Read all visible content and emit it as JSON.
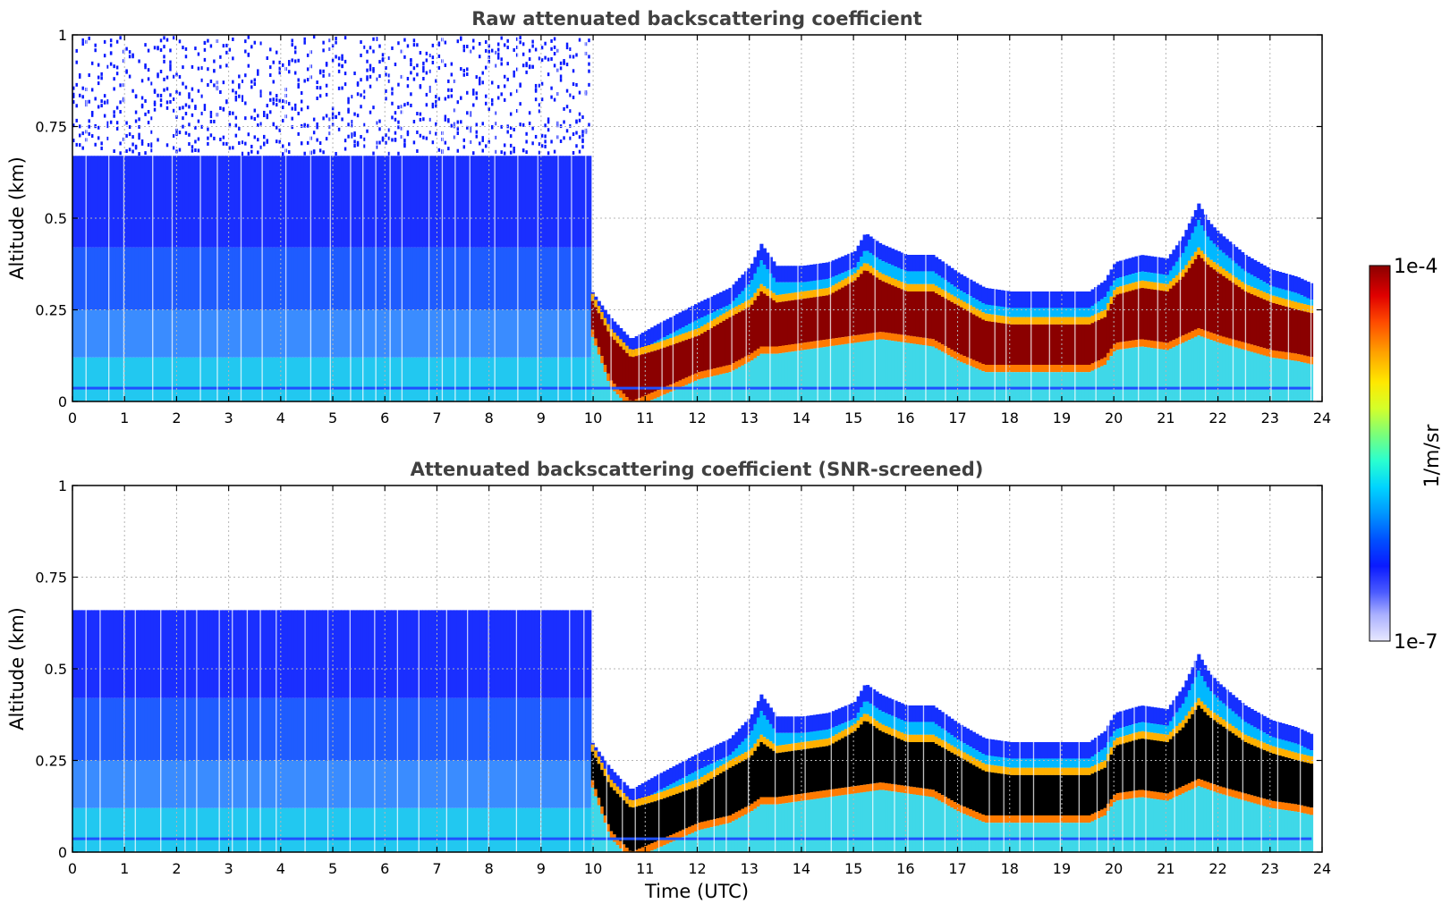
{
  "chart_data": [
    {
      "type": "heatmap",
      "title": "Raw attenuated backscattering coefficient",
      "xlabel": "",
      "ylabel": "Altitude (km)",
      "xlim": [
        0,
        24
      ],
      "ylim": [
        0,
        1
      ],
      "xticks": [
        "0",
        "1",
        "2",
        "3",
        "4",
        "5",
        "6",
        "7",
        "8",
        "9",
        "10",
        "11",
        "12",
        "13",
        "14",
        "15",
        "16",
        "17",
        "18",
        "19",
        "20",
        "21",
        "22",
        "23",
        "24"
      ],
      "yticks": [
        "0",
        "0.25",
        "0.5",
        "0.75",
        "1"
      ],
      "grid": true,
      "data_end_time": 23.8,
      "noise_regime_until_hour": 9.9,
      "layer_top_km": [
        {
          "t": 0,
          "v": 0.42
        },
        {
          "t": 9.7,
          "v": 0.42
        },
        {
          "t": 9.9,
          "v": 0.3
        },
        {
          "t": 10.3,
          "v": 0.22
        },
        {
          "t": 10.7,
          "v": 0.16
        },
        {
          "t": 11.2,
          "v": 0.2
        },
        {
          "t": 12,
          "v": 0.26
        },
        {
          "t": 12.6,
          "v": 0.3
        },
        {
          "t": 13,
          "v": 0.36
        },
        {
          "t": 13.2,
          "v": 0.42
        },
        {
          "t": 13.5,
          "v": 0.36
        },
        {
          "t": 14,
          "v": 0.36
        },
        {
          "t": 14.5,
          "v": 0.37
        },
        {
          "t": 15,
          "v": 0.4
        },
        {
          "t": 15.2,
          "v": 0.45
        },
        {
          "t": 15.5,
          "v": 0.42
        },
        {
          "t": 16,
          "v": 0.39
        },
        {
          "t": 16.5,
          "v": 0.39
        },
        {
          "t": 17,
          "v": 0.34
        },
        {
          "t": 17.5,
          "v": 0.3
        },
        {
          "t": 18,
          "v": 0.29
        },
        {
          "t": 19,
          "v": 0.29
        },
        {
          "t": 19.5,
          "v": 0.29
        },
        {
          "t": 19.8,
          "v": 0.32
        },
        {
          "t": 20,
          "v": 0.37
        },
        {
          "t": 20.5,
          "v": 0.39
        },
        {
          "t": 21,
          "v": 0.38
        },
        {
          "t": 21.3,
          "v": 0.44
        },
        {
          "t": 21.6,
          "v": 0.53
        },
        {
          "t": 21.8,
          "v": 0.48
        },
        {
          "t": 22,
          "v": 0.45
        },
        {
          "t": 22.5,
          "v": 0.39
        },
        {
          "t": 23,
          "v": 0.35
        },
        {
          "t": 23.5,
          "v": 0.33
        },
        {
          "t": 23.8,
          "v": 0.31
        }
      ],
      "core_top_km": [
        {
          "t": 9.9,
          "v": 0.29
        },
        {
          "t": 10.3,
          "v": 0.18
        },
        {
          "t": 10.7,
          "v": 0.12
        },
        {
          "t": 11.2,
          "v": 0.14
        },
        {
          "t": 12,
          "v": 0.18
        },
        {
          "t": 12.6,
          "v": 0.23
        },
        {
          "t": 13,
          "v": 0.26
        },
        {
          "t": 13.2,
          "v": 0.3
        },
        {
          "t": 13.5,
          "v": 0.27
        },
        {
          "t": 14,
          "v": 0.28
        },
        {
          "t": 14.5,
          "v": 0.29
        },
        {
          "t": 15,
          "v": 0.33
        },
        {
          "t": 15.2,
          "v": 0.36
        },
        {
          "t": 15.5,
          "v": 0.33
        },
        {
          "t": 16,
          "v": 0.3
        },
        {
          "t": 16.5,
          "v": 0.3
        },
        {
          "t": 17,
          "v": 0.26
        },
        {
          "t": 17.5,
          "v": 0.22
        },
        {
          "t": 18,
          "v": 0.21
        },
        {
          "t": 19,
          "v": 0.21
        },
        {
          "t": 19.5,
          "v": 0.21
        },
        {
          "t": 19.8,
          "v": 0.23
        },
        {
          "t": 20,
          "v": 0.29
        },
        {
          "t": 20.5,
          "v": 0.31
        },
        {
          "t": 21,
          "v": 0.3
        },
        {
          "t": 21.3,
          "v": 0.34
        },
        {
          "t": 21.6,
          "v": 0.4
        },
        {
          "t": 21.8,
          "v": 0.37
        },
        {
          "t": 22,
          "v": 0.35
        },
        {
          "t": 22.5,
          "v": 0.3
        },
        {
          "t": 23,
          "v": 0.27
        },
        {
          "t": 23.5,
          "v": 0.25
        },
        {
          "t": 23.8,
          "v": 0.24
        }
      ],
      "core_bottom_km": [
        {
          "t": 9.9,
          "v": 0.22
        },
        {
          "t": 10.3,
          "v": 0.06
        },
        {
          "t": 10.7,
          "v": 0.0
        },
        {
          "t": 11.2,
          "v": 0.03
        },
        {
          "t": 12,
          "v": 0.08
        },
        {
          "t": 12.6,
          "v": 0.1
        },
        {
          "t": 13,
          "v": 0.13
        },
        {
          "t": 13.2,
          "v": 0.15
        },
        {
          "t": 13.5,
          "v": 0.15
        },
        {
          "t": 14,
          "v": 0.16
        },
        {
          "t": 14.5,
          "v": 0.17
        },
        {
          "t": 15,
          "v": 0.18
        },
        {
          "t": 15.5,
          "v": 0.19
        },
        {
          "t": 16,
          "v": 0.18
        },
        {
          "t": 16.5,
          "v": 0.17
        },
        {
          "t": 17,
          "v": 0.13
        },
        {
          "t": 17.5,
          "v": 0.1
        },
        {
          "t": 18,
          "v": 0.1
        },
        {
          "t": 19,
          "v": 0.1
        },
        {
          "t": 19.5,
          "v": 0.1
        },
        {
          "t": 19.8,
          "v": 0.12
        },
        {
          "t": 20,
          "v": 0.16
        },
        {
          "t": 20.5,
          "v": 0.17
        },
        {
          "t": 21,
          "v": 0.16
        },
        {
          "t": 21.3,
          "v": 0.18
        },
        {
          "t": 21.6,
          "v": 0.2
        },
        {
          "t": 21.8,
          "v": 0.19
        },
        {
          "t": 22,
          "v": 0.18
        },
        {
          "t": 22.5,
          "v": 0.16
        },
        {
          "t": 23,
          "v": 0.14
        },
        {
          "t": 23.5,
          "v": 0.13
        },
        {
          "t": 23.8,
          "v": 0.12
        }
      ]
    },
    {
      "type": "heatmap",
      "title": "Attenuated backscattering coefficient (SNR-screened)",
      "xlabel": "Time (UTC)",
      "ylabel": "Altitude (km)",
      "xlim": [
        0,
        24
      ],
      "ylim": [
        0,
        1
      ],
      "xticks": [
        "0",
        "1",
        "2",
        "3",
        "4",
        "5",
        "6",
        "7",
        "8",
        "9",
        "10",
        "11",
        "12",
        "13",
        "14",
        "15",
        "16",
        "17",
        "18",
        "19",
        "20",
        "21",
        "22",
        "23",
        "24"
      ],
      "yticks": [
        "0",
        "0.25",
        "0.5",
        "0.75",
        "1"
      ],
      "grid": true,
      "data_end_time": 23.8,
      "screened_top_km": 0.66,
      "screened_until_hour": 9.8,
      "saturated_color": "#000000"
    }
  ],
  "colorbar": {
    "label": "1/m/sr",
    "max_label": "1e-4",
    "min_label": "1e-7",
    "scale": "log",
    "colors": [
      "#e8e8ff",
      "#aab0ff",
      "#4b5bff",
      "#0a1aff",
      "#0050ff",
      "#0096ff",
      "#00d4ff",
      "#2affd0",
      "#7aff7a",
      "#d4ff2a",
      "#ffe800",
      "#ffa000",
      "#ff4a00",
      "#e00000",
      "#8b0000"
    ]
  }
}
